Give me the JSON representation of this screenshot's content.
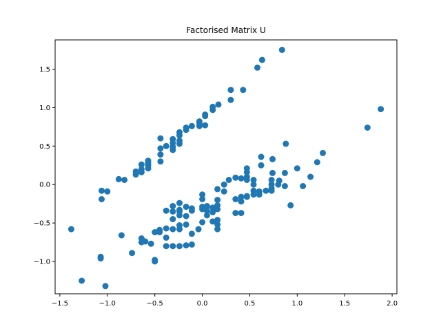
{
  "chart_data": {
    "type": "scatter",
    "title": "Factorised Matrix U",
    "xlabel": "",
    "ylabel": "",
    "xlim": [
      -1.55,
      2.05
    ],
    "ylim": [
      -1.42,
      1.88
    ],
    "xticks": [
      -1.5,
      -1.0,
      -0.5,
      0.0,
      0.5,
      1.0,
      1.5,
      2.0
    ],
    "yticks": [
      -1.0,
      -0.5,
      0.0,
      0.5,
      1.0,
      1.5
    ],
    "xtick_labels": [
      "−1.5",
      "−1.0",
      "−0.5",
      "0.0",
      "0.5",
      "1.0",
      "1.5",
      "2.0"
    ],
    "ytick_labels": [
      "−1.0",
      "−0.5",
      "0.0",
      "0.5",
      "1.0",
      "1.5"
    ],
    "grid": false,
    "marker_color": "#1f77b4",
    "series": [
      {
        "points": [
          [
            0.84,
            1.75
          ],
          [
            0.63,
            1.62
          ],
          [
            0.58,
            1.52
          ],
          [
            0.3,
            1.23
          ],
          [
            0.43,
            1.23
          ],
          [
            0.3,
            1.1
          ],
          [
            0.17,
            1.04
          ],
          [
            0.11,
            1.01
          ],
          [
            0.11,
            0.97
          ],
          [
            0.03,
            0.91
          ],
          [
            0.03,
            0.89
          ],
          [
            -0.03,
            0.82
          ],
          [
            -0.03,
            0.79
          ],
          [
            0.03,
            0.77
          ],
          [
            -0.03,
            0.76
          ],
          [
            -0.11,
            0.76
          ],
          [
            -0.17,
            0.74
          ],
          [
            -0.17,
            0.71
          ],
          [
            -0.24,
            0.68
          ],
          [
            -0.24,
            0.64
          ],
          [
            -0.31,
            0.59
          ],
          [
            -0.24,
            0.57
          ],
          [
            -0.24,
            0.53
          ],
          [
            -0.31,
            0.54
          ],
          [
            -0.31,
            0.49
          ],
          [
            -0.31,
            0.45
          ],
          [
            -0.44,
            0.6
          ],
          [
            -0.44,
            0.47
          ],
          [
            -0.38,
            0.5
          ],
          [
            -0.44,
            0.39
          ],
          [
            -0.44,
            0.3
          ],
          [
            -0.57,
            0.31
          ],
          [
            -0.57,
            0.28
          ],
          [
            -0.57,
            0.25
          ],
          [
            -0.57,
            0.21
          ],
          [
            -0.64,
            0.26
          ],
          [
            -0.64,
            0.2
          ],
          [
            -0.64,
            0.16
          ],
          [
            -0.7,
            0.17
          ],
          [
            -0.7,
            0.13
          ],
          [
            -0.82,
            0.06
          ],
          [
            -0.88,
            0.07
          ],
          [
            -1.06,
            -0.08
          ],
          [
            -1.0,
            -0.09
          ],
          [
            -1.06,
            -0.19
          ],
          [
            1.88,
            0.98
          ],
          [
            1.74,
            0.74
          ],
          [
            1.27,
            0.41
          ],
          [
            1.21,
            0.29
          ],
          [
            1.14,
            0.1
          ],
          [
            1.0,
            0.21
          ],
          [
            1.06,
            -0.02
          ],
          [
            0.93,
            -0.27
          ],
          [
            0.88,
            0.53
          ],
          [
            0.87,
            0.15
          ],
          [
            0.87,
            -0.02
          ],
          [
            0.81,
            0.05
          ],
          [
            0.8,
            0.0
          ],
          [
            0.74,
            0.33
          ],
          [
            0.74,
            0.15
          ],
          [
            0.73,
            0.06
          ],
          [
            0.73,
            0.0
          ],
          [
            0.73,
            -0.05
          ],
          [
            0.73,
            -0.08
          ],
          [
            0.67,
            -0.08
          ],
          [
            0.62,
            0.36
          ],
          [
            0.62,
            0.25
          ],
          [
            0.6,
            -0.09
          ],
          [
            0.6,
            -0.13
          ],
          [
            0.54,
            0.06
          ],
          [
            0.54,
            0.0
          ],
          [
            0.54,
            -0.08
          ],
          [
            0.54,
            -0.13
          ],
          [
            0.47,
            0.21
          ],
          [
            0.47,
            0.16
          ],
          [
            0.47,
            0.1
          ],
          [
            0.47,
            0.06
          ],
          [
            0.47,
            -0.15
          ],
          [
            0.47,
            -0.16
          ],
          [
            0.41,
            0.08
          ],
          [
            0.41,
            -0.16
          ],
          [
            0.41,
            -0.22
          ],
          [
            0.41,
            -0.37
          ],
          [
            0.35,
            0.09
          ],
          [
            0.35,
            -0.19
          ],
          [
            0.35,
            -0.37
          ],
          [
            0.28,
            0.06
          ],
          [
            0.23,
            0.0
          ],
          [
            0.23,
            -0.09
          ],
          [
            0.16,
            -0.06
          ],
          [
            0.16,
            -0.2
          ],
          [
            0.16,
            -0.27
          ],
          [
            0.16,
            -0.32
          ],
          [
            0.16,
            -0.46
          ],
          [
            0.16,
            -0.52
          ],
          [
            0.16,
            -0.58
          ],
          [
            0.11,
            -0.3
          ],
          [
            0.11,
            -0.36
          ],
          [
            0.11,
            -0.48
          ],
          [
            0.05,
            -0.28
          ],
          [
            0.05,
            -0.34
          ],
          [
            0.05,
            -0.4
          ],
          [
            0.0,
            -0.13
          ],
          [
            0.0,
            -0.19
          ],
          [
            0.0,
            -0.29
          ],
          [
            0.0,
            -0.32
          ],
          [
            0.0,
            -0.49
          ],
          [
            -0.04,
            -0.58
          ],
          [
            -0.11,
            -0.31
          ],
          [
            -0.11,
            -0.34
          ],
          [
            -0.11,
            -0.64
          ],
          [
            -0.11,
            -0.78
          ],
          [
            -0.17,
            -0.29
          ],
          [
            -0.17,
            -0.41
          ],
          [
            -0.17,
            -0.52
          ],
          [
            -0.17,
            -0.79
          ],
          [
            -0.24,
            -0.24
          ],
          [
            -0.24,
            -0.33
          ],
          [
            -0.24,
            -0.35
          ],
          [
            -0.24,
            -0.4
          ],
          [
            -0.24,
            -0.53
          ],
          [
            -0.24,
            -0.58
          ],
          [
            -0.24,
            -0.8
          ],
          [
            -0.31,
            -0.28
          ],
          [
            -0.31,
            -0.35
          ],
          [
            -0.31,
            -0.45
          ],
          [
            -0.31,
            -0.58
          ],
          [
            -0.31,
            -0.8
          ],
          [
            -0.38,
            -0.34
          ],
          [
            -0.38,
            -0.57
          ],
          [
            -0.38,
            -0.69
          ],
          [
            -0.38,
            -0.8
          ],
          [
            -0.45,
            -0.59
          ],
          [
            -0.45,
            -0.62
          ],
          [
            -0.5,
            -0.62
          ],
          [
            -0.5,
            -0.98
          ],
          [
            -0.5,
            -1.0
          ],
          [
            -0.54,
            -0.77
          ],
          [
            -0.6,
            -0.74
          ],
          [
            -0.64,
            -0.7
          ],
          [
            -0.64,
            -0.75
          ],
          [
            -0.74,
            -0.89
          ],
          [
            -0.85,
            -0.66
          ],
          [
            -1.07,
            -0.94
          ],
          [
            -1.07,
            -0.96
          ],
          [
            -1.38,
            -0.58
          ],
          [
            -1.27,
            -1.25
          ],
          [
            -1.02,
            -1.32
          ]
        ]
      }
    ]
  }
}
